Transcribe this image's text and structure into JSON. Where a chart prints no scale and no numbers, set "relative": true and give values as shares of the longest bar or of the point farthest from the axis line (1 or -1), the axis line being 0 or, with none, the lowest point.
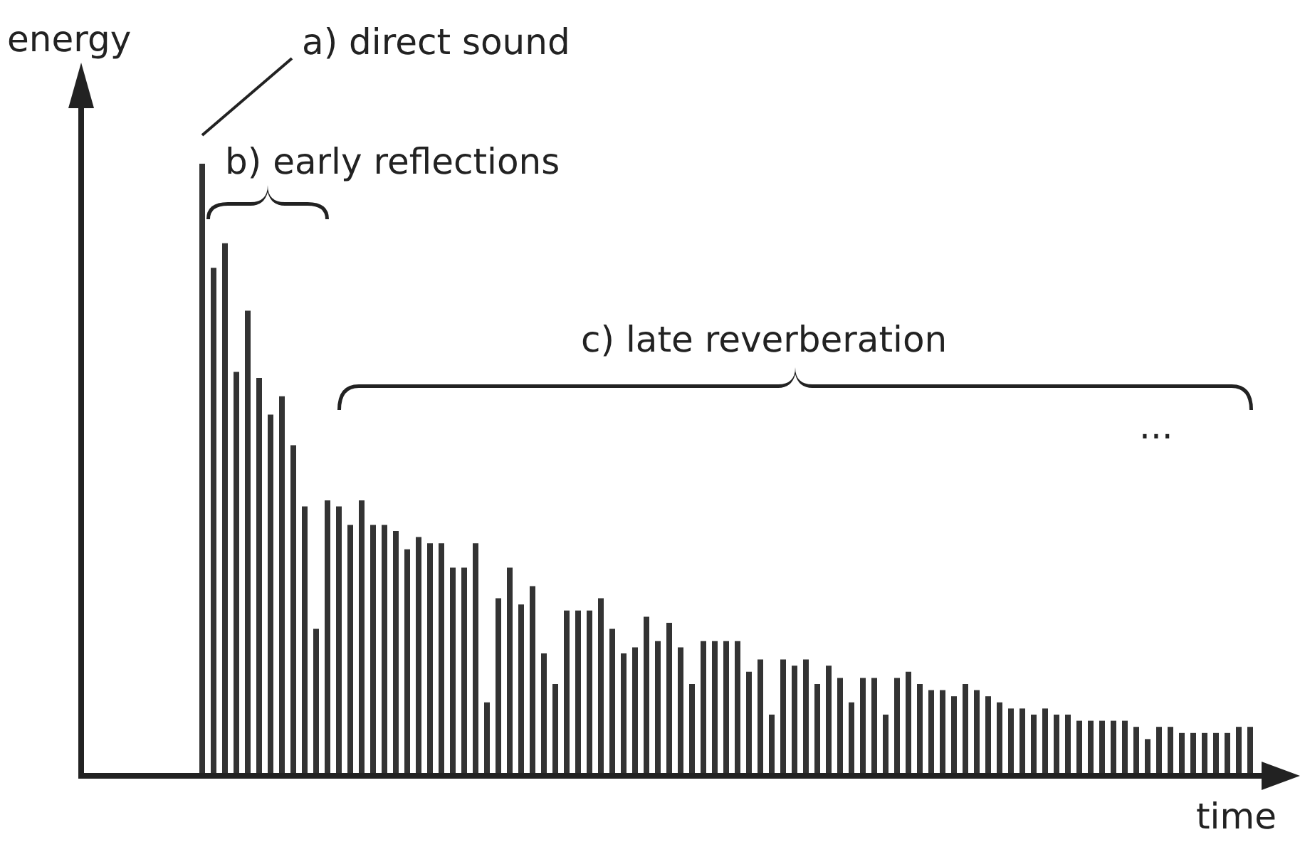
{
  "chart_data": {
    "type": "bar",
    "relative": true,
    "xlabel": "time",
    "ylabel": "energy",
    "color": "#333333",
    "annotations": [
      "a) direct sound",
      "b) early reflections",
      "c) late reverberation",
      "..."
    ],
    "categories": [
      null,
      null,
      null,
      null,
      null,
      null,
      null,
      null,
      null,
      null,
      null,
      null,
      null,
      null,
      null,
      null,
      null,
      null,
      null,
      null,
      null,
      null,
      null,
      null,
      null,
      null,
      null,
      null,
      null,
      null,
      null,
      null,
      null,
      null,
      null,
      null,
      null,
      null,
      null,
      null,
      null,
      null,
      null,
      null,
      null,
      null,
      null,
      null,
      null,
      null,
      null,
      null,
      null,
      null,
      null,
      null,
      null,
      null,
      null,
      null,
      null,
      null,
      null,
      null,
      null,
      null,
      null,
      null,
      null,
      null,
      null,
      null,
      null,
      null,
      null,
      null,
      null,
      null,
      null,
      null,
      null,
      null,
      null,
      null,
      null,
      null,
      null,
      null,
      null,
      null,
      null,
      null,
      null
    ],
    "values": [
      1,
      0.83,
      0.87,
      0.66,
      0.76,
      0.65,
      0.59,
      0.62,
      0.54,
      0.44,
      0.24,
      0.45,
      0.44,
      0.41,
      0.45,
      0.41,
      0.41,
      0.4,
      0.37,
      0.39,
      0.38,
      0.38,
      0.34,
      0.34,
      0.38,
      0.12,
      0.29,
      0.34,
      0.28,
      0.31,
      0.2,
      0.15,
      0.27,
      0.27,
      0.27,
      0.29,
      0.24,
      0.2,
      0.21,
      0.26,
      0.22,
      0.25,
      0.21,
      0.15,
      0.22,
      0.22,
      0.22,
      0.22,
      0.17,
      0.19,
      0.1,
      0.19,
      0.18,
      0.19,
      0.15,
      0.18,
      0.16,
      0.12,
      0.16,
      0.16,
      0.1,
      0.16,
      0.17,
      0.15,
      0.14,
      0.14,
      0.13,
      0.15,
      0.14,
      0.13,
      0.12,
      0.11,
      0.11,
      0.1,
      0.11,
      0.1,
      0.1,
      0.09,
      0.09,
      0.09,
      0.09,
      0.09,
      0.08,
      0.06,
      0.08,
      0.08,
      0.07,
      0.07,
      0.07,
      0.07,
      0.07,
      0.08,
      0.08
    ]
  }
}
